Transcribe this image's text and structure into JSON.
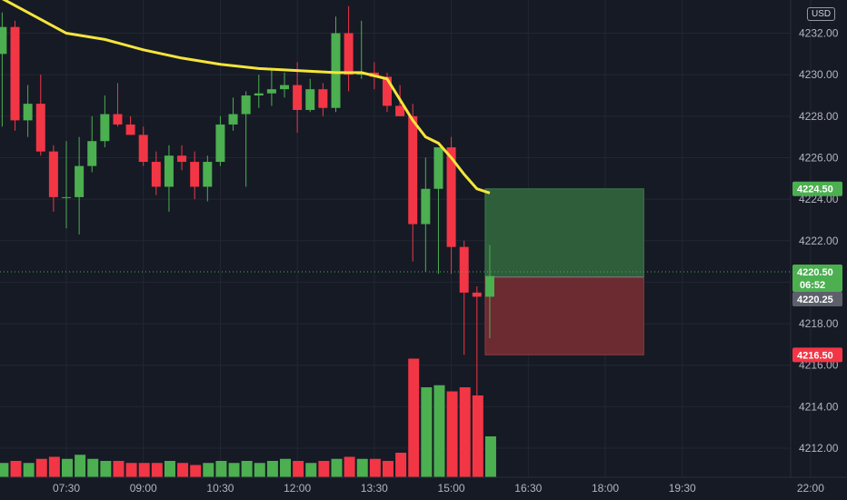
{
  "currency_button": "USD",
  "colors": {
    "background": "#161a25",
    "up": "#4caf50",
    "down": "#f23645",
    "ma_line": "#f5e53b",
    "grid": "#232733",
    "profit_zone": "#2e5e3a",
    "loss_zone": "#6b2b31",
    "current_price_tag": "#4caf50",
    "stop_tag": "#f23645",
    "entry_tag": "#5d606b"
  },
  "chart_data": {
    "type": "candlestick",
    "instrument": "",
    "interval_minutes": 15,
    "y_axis": {
      "range": [
        4210.6,
        4233.6
      ],
      "ticks": [
        "4212.00",
        "4214.00",
        "4216.00",
        "4218.00",
        "4220.00",
        "4222.00",
        "4224.00",
        "4226.00",
        "4228.00",
        "4230.00",
        "4232.00"
      ]
    },
    "x_axis": {
      "ticks": [
        {
          "label": "07:30",
          "time": "07:30"
        },
        {
          "label": "09:00",
          "time": "09:00"
        },
        {
          "label": "10:30",
          "time": "10:30"
        },
        {
          "label": "12:00",
          "time": "12:00"
        },
        {
          "label": "13:30",
          "time": "13:30"
        },
        {
          "label": "15:00",
          "time": "15:00"
        },
        {
          "label": "16:30",
          "time": "16:30"
        },
        {
          "label": "18:00",
          "time": "18:00"
        },
        {
          "label": "19:30",
          "time": "19:30"
        },
        {
          "label": "22:00",
          "time": "22:00"
        }
      ]
    },
    "candles": [
      {
        "time": "06:15",
        "open": 4231.0,
        "high": 4233.0,
        "low": 4227.5,
        "close": 4232.3,
        "volume": 7
      },
      {
        "time": "06:30",
        "open": 4232.3,
        "high": 4232.6,
        "low": 4227.3,
        "close": 4227.8,
        "volume": 8
      },
      {
        "time": "06:45",
        "open": 4227.8,
        "high": 4229.5,
        "low": 4227.0,
        "close": 4228.6,
        "volume": 7
      },
      {
        "time": "07:00",
        "open": 4228.6,
        "high": 4230.0,
        "low": 4226.1,
        "close": 4226.3,
        "volume": 9
      },
      {
        "time": "07:15",
        "open": 4226.3,
        "high": 4226.6,
        "low": 4223.4,
        "close": 4224.1,
        "volume": 10
      },
      {
        "time": "07:30",
        "open": 4224.1,
        "high": 4226.8,
        "low": 4222.6,
        "close": 4224.1,
        "volume": 9
      },
      {
        "time": "07:45",
        "open": 4224.1,
        "high": 4227.0,
        "low": 4222.3,
        "close": 4225.6,
        "volume": 11
      },
      {
        "time": "08:00",
        "open": 4225.6,
        "high": 4228.0,
        "low": 4225.3,
        "close": 4226.8,
        "volume": 9
      },
      {
        "time": "08:15",
        "open": 4226.8,
        "high": 4229.0,
        "low": 4226.5,
        "close": 4228.1,
        "volume": 8
      },
      {
        "time": "08:30",
        "open": 4228.1,
        "high": 4229.6,
        "low": 4227.5,
        "close": 4227.6,
        "volume": 8
      },
      {
        "time": "08:45",
        "open": 4227.6,
        "high": 4228.0,
        "low": 4227.1,
        "close": 4227.1,
        "volume": 7
      },
      {
        "time": "09:00",
        "open": 4227.1,
        "high": 4227.5,
        "low": 4225.6,
        "close": 4225.8,
        "volume": 7
      },
      {
        "time": "09:15",
        "open": 4225.8,
        "high": 4226.3,
        "low": 4224.2,
        "close": 4224.6,
        "volume": 7
      },
      {
        "time": "09:30",
        "open": 4224.6,
        "high": 4226.6,
        "low": 4223.4,
        "close": 4226.1,
        "volume": 8
      },
      {
        "time": "09:45",
        "open": 4226.1,
        "high": 4226.6,
        "low": 4225.4,
        "close": 4225.8,
        "volume": 7
      },
      {
        "time": "10:00",
        "open": 4225.8,
        "high": 4226.3,
        "low": 4224.0,
        "close": 4224.6,
        "volume": 6
      },
      {
        "time": "10:15",
        "open": 4224.6,
        "high": 4226.1,
        "low": 4223.9,
        "close": 4225.8,
        "volume": 7
      },
      {
        "time": "10:30",
        "open": 4225.8,
        "high": 4228.0,
        "low": 4225.6,
        "close": 4227.6,
        "volume": 8
      },
      {
        "time": "10:45",
        "open": 4227.6,
        "high": 4228.9,
        "low": 4227.3,
        "close": 4228.1,
        "volume": 7
      },
      {
        "time": "11:00",
        "open": 4228.1,
        "high": 4229.2,
        "low": 4224.6,
        "close": 4229.0,
        "volume": 8
      },
      {
        "time": "11:15",
        "open": 4229.0,
        "high": 4230.0,
        "low": 4228.4,
        "close": 4229.1,
        "volume": 7
      },
      {
        "time": "11:30",
        "open": 4229.1,
        "high": 4230.3,
        "low": 4228.5,
        "close": 4229.3,
        "volume": 8
      },
      {
        "time": "11:45",
        "open": 4229.3,
        "high": 4230.1,
        "low": 4228.9,
        "close": 4229.5,
        "volume": 9
      },
      {
        "time": "12:00",
        "open": 4229.5,
        "high": 4230.6,
        "low": 4227.2,
        "close": 4228.3,
        "volume": 8
      },
      {
        "time": "12:15",
        "open": 4228.3,
        "high": 4229.8,
        "low": 4228.2,
        "close": 4229.3,
        "volume": 7
      },
      {
        "time": "12:30",
        "open": 4229.3,
        "high": 4229.6,
        "low": 4228.0,
        "close": 4228.4,
        "volume": 8
      },
      {
        "time": "12:45",
        "open": 4228.4,
        "high": 4232.8,
        "low": 4228.2,
        "close": 4232.0,
        "volume": 9
      },
      {
        "time": "13:00",
        "open": 4232.0,
        "high": 4233.3,
        "low": 4229.2,
        "close": 4230.0,
        "volume": 10
      },
      {
        "time": "13:15",
        "open": 4230.0,
        "high": 4232.6,
        "low": 4229.8,
        "close": 4230.1,
        "volume": 9
      },
      {
        "time": "13:30",
        "open": 4230.1,
        "high": 4230.6,
        "low": 4229.3,
        "close": 4229.9,
        "volume": 9
      },
      {
        "time": "13:45",
        "open": 4229.9,
        "high": 4230.1,
        "low": 4228.2,
        "close": 4228.5,
        "volume": 8
      },
      {
        "time": "14:00",
        "open": 4228.5,
        "high": 4229.5,
        "low": 4228.0,
        "close": 4228.0,
        "volume": 12
      },
      {
        "time": "14:15",
        "open": 4228.0,
        "high": 4228.6,
        "low": 4221.0,
        "close": 4222.8,
        "volume": 58
      },
      {
        "time": "14:30",
        "open": 4222.8,
        "high": 4226.0,
        "low": 4220.5,
        "close": 4224.5,
        "volume": 44
      },
      {
        "time": "14:45",
        "open": 4224.5,
        "high": 4226.5,
        "low": 4220.4,
        "close": 4226.5,
        "volume": 45
      },
      {
        "time": "15:00",
        "open": 4226.5,
        "high": 4227.0,
        "low": 4220.4,
        "close": 4221.7,
        "volume": 42
      },
      {
        "time": "15:15",
        "open": 4221.7,
        "high": 4222.0,
        "low": 4216.5,
        "close": 4219.5,
        "volume": 44
      },
      {
        "time": "15:30",
        "open": 4219.5,
        "high": 4219.8,
        "low": 4214.3,
        "close": 4219.3,
        "volume": 40
      },
      {
        "time": "15:45",
        "open": 4219.3,
        "high": 4221.8,
        "low": 4217.3,
        "close": 4220.3,
        "volume": 20
      }
    ],
    "moving_average": [
      {
        "time": "06:00",
        "value": 4234.0
      },
      {
        "time": "06:45",
        "value": 4233.0
      },
      {
        "time": "07:30",
        "value": 4232.0
      },
      {
        "time": "08:15",
        "value": 4231.7
      },
      {
        "time": "09:00",
        "value": 4231.2
      },
      {
        "time": "09:45",
        "value": 4230.8
      },
      {
        "time": "10:30",
        "value": 4230.5
      },
      {
        "time": "11:15",
        "value": 4230.3
      },
      {
        "time": "12:00",
        "value": 4230.2
      },
      {
        "time": "12:45",
        "value": 4230.1
      },
      {
        "time": "13:15",
        "value": 4230.1
      },
      {
        "time": "13:45",
        "value": 4229.8
      },
      {
        "time": "14:00",
        "value": 4228.8
      },
      {
        "time": "14:15",
        "value": 4227.8
      },
      {
        "time": "14:30",
        "value": 4227.0
      },
      {
        "time": "14:45",
        "value": 4226.7
      },
      {
        "time": "15:00",
        "value": 4226.0
      },
      {
        "time": "15:15",
        "value": 4225.2
      },
      {
        "time": "15:30",
        "value": 4224.5
      },
      {
        "time": "15:45",
        "value": 4224.3
      }
    ],
    "position": {
      "type": "long",
      "entry": 4220.25,
      "target": 4224.5,
      "stop": 4216.5,
      "start_time": "15:45",
      "end_time": "18:45"
    },
    "current_price": 4220.5,
    "price_tags": {
      "target_label": "4224.50",
      "current_label": "4220.50",
      "countdown": "06:52",
      "entry_label": "4220.25",
      "stop_label": "4216.50"
    }
  }
}
